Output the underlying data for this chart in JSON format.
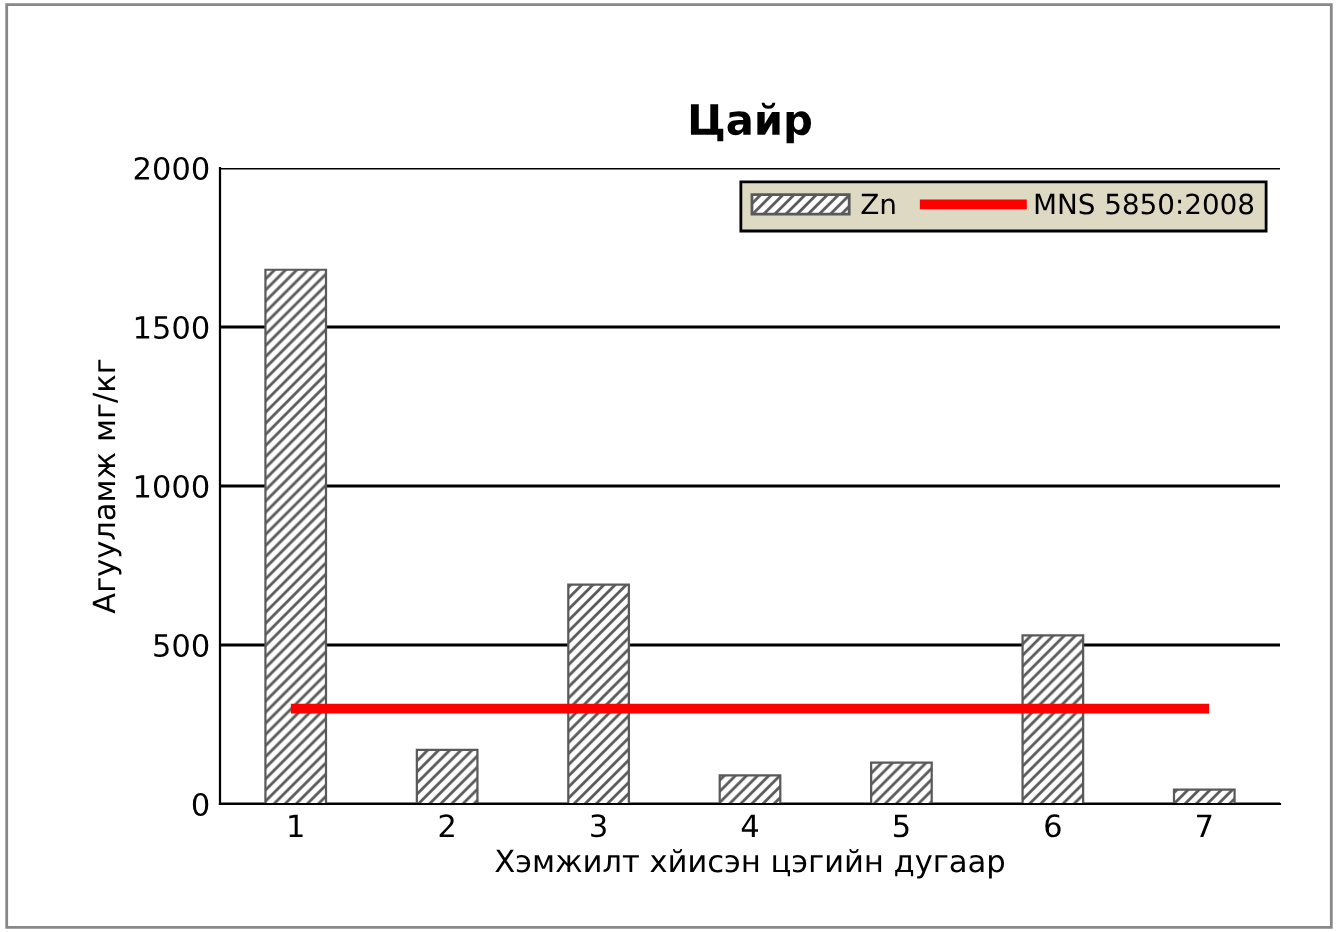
{
  "chart_data": {
    "type": "bar",
    "title": "Цайр",
    "xlabel": "Хэмжилт хйисэн цэгийн дугаар",
    "ylabel": "Агууламж мг/кг",
    "categories": [
      "1",
      "2",
      "3",
      "4",
      "5",
      "6",
      "7"
    ],
    "series": [
      {
        "name": "Zn",
        "color": "#595959",
        "values": [
          1680,
          170,
          690,
          90,
          130,
          530,
          45
        ]
      },
      {
        "name": "MNS 5850:2008",
        "type": "line",
        "color": "#ff0000",
        "values": [
          300,
          300,
          300,
          300,
          300,
          300,
          300
        ]
      }
    ],
    "ylim": [
      0,
      2000
    ],
    "yticks": [
      0,
      500,
      1000,
      1500,
      2000
    ],
    "grid": "y",
    "legend": "top right"
  }
}
